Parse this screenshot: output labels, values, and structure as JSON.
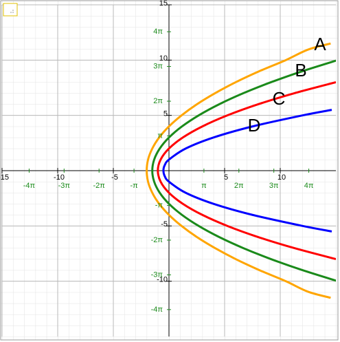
{
  "chart_data": {
    "type": "line",
    "xlim": [
      -15,
      15
    ],
    "ylim": [
      -15,
      15
    ],
    "xticks": [
      {
        "value": -15,
        "label": "-15"
      },
      -10,
      -5,
      5,
      10
    ],
    "yticks": [
      15,
      10,
      5,
      -5,
      -10
    ],
    "pi_xticks": [
      {
        "value": -12.566,
        "label": "-4π"
      },
      {
        "value": -9.425,
        "label": "-3π"
      },
      {
        "value": -6.283,
        "label": "-2π"
      },
      {
        "value": -3.1416,
        "label": "-π"
      },
      {
        "value": 3.1416,
        "label": "π"
      },
      {
        "value": 6.283,
        "label": "2π"
      },
      {
        "value": 9.425,
        "label": "3π"
      },
      {
        "value": 12.566,
        "label": "4π"
      }
    ],
    "pi_yticks": [
      {
        "value": 12.566,
        "label": "4π"
      },
      {
        "value": 9.425,
        "label": "3π"
      },
      {
        "value": 6.283,
        "label": "2π"
      },
      {
        "value": 3.1416,
        "label": "π"
      },
      {
        "value": -3.1416,
        "label": "-π"
      },
      {
        "value": -6.283,
        "label": "-2π"
      },
      {
        "value": -9.425,
        "label": "-3π"
      },
      {
        "value": -12.566,
        "label": "-4π"
      }
    ],
    "grid": true,
    "series": [
      {
        "name": "A",
        "color": "#ffa500",
        "x": [
          14.53,
          12.5,
          10.5,
          8.13,
          6,
          4.13,
          2.5,
          1.13,
          0,
          -0.88,
          -1.5,
          -1.88,
          -2,
          -1.88,
          -1.5,
          -0.88,
          0,
          1.13,
          2.5,
          4.13,
          6,
          8.13,
          10.5,
          12.5,
          14.53
        ],
        "values": [
          -11.5,
          -10.95,
          -10,
          -9,
          -8,
          -7,
          -6,
          -5,
          -4,
          -3,
          -2,
          -1,
          0,
          1,
          2,
          3,
          4,
          5,
          6,
          7,
          8,
          9,
          10,
          10.95,
          11.5
        ]
      },
      {
        "name": "B",
        "color": "#1a8a1a",
        "x": [
          15.17,
          12,
          9.17,
          6.67,
          4.5,
          2.67,
          1.17,
          0,
          -0.83,
          -1.33,
          -1.5,
          -1.33,
          -0.83,
          0,
          1.17,
          2.67,
          4.5,
          6.67,
          9.17,
          12,
          15.17
        ],
        "values": [
          -10,
          -9,
          -8,
          -7,
          -6,
          -5,
          -4,
          -3,
          -2,
          -1,
          0,
          1,
          2,
          3,
          4,
          5,
          6,
          7,
          8,
          9,
          10
        ]
      },
      {
        "name": "C",
        "color": "#ff0000",
        "x": [
          15,
          11.25,
          8,
          5.25,
          3,
          1.25,
          0,
          -0.75,
          -1,
          -0.75,
          0,
          1.25,
          3,
          5.25,
          8,
          11.25,
          15
        ],
        "values": [
          -8,
          -7,
          -6,
          -5,
          -4,
          -3,
          -2,
          -1,
          0,
          1,
          2,
          3,
          4,
          5,
          6,
          7,
          8
        ]
      },
      {
        "name": "D",
        "color": "#0000ff",
        "x": [
          14.63,
          12,
          7.5,
          4,
          1.5,
          0,
          -0.38,
          -0.5,
          -0.38,
          0,
          1.5,
          4,
          7.5,
          12,
          14.63
        ],
        "values": [
          -5.5,
          -5,
          -4,
          -3,
          -2,
          -1,
          -0.5,
          0,
          0.5,
          1,
          2,
          3,
          4,
          5,
          5.5
        ]
      }
    ]
  }
}
